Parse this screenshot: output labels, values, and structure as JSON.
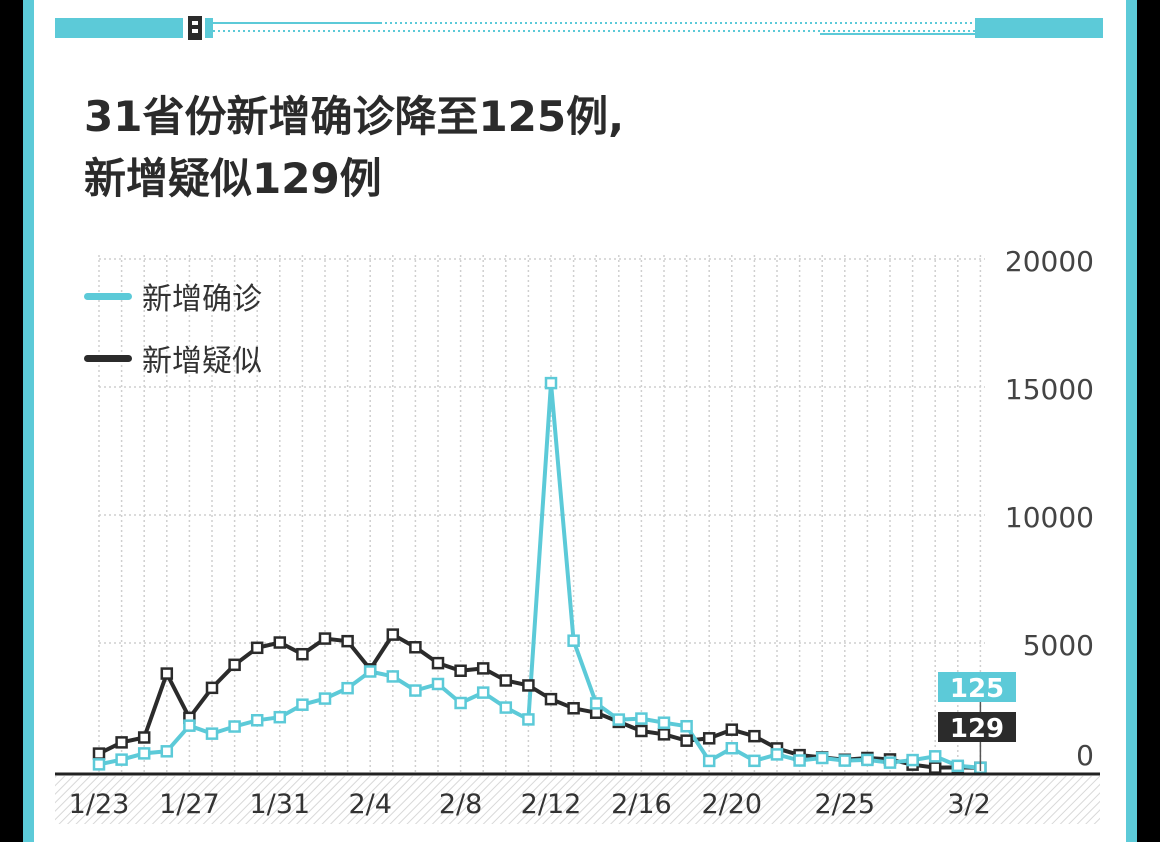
{
  "title_line1": "31省份新增确诊降至125例,",
  "title_line2": "新增疑似129例",
  "colors": {
    "frame": "#5ccad8",
    "confirmed": "#5ccad8",
    "suspected": "#2b2b2b",
    "grid": "#cfcfcf",
    "axis": "#222222"
  },
  "chart_data": {
    "type": "line",
    "title": "31省份新增确诊降至125例, 新增疑似129例",
    "xlabel": "",
    "ylabel": "",
    "ylim": [
      0,
      20000
    ],
    "y_ticks": [
      "20000",
      "15000",
      "10000",
      "5000",
      "0"
    ],
    "y_tick_values": [
      20000,
      15000,
      10000,
      5000,
      0
    ],
    "x": [
      "1/23",
      "1/24",
      "1/25",
      "1/26",
      "1/27",
      "1/28",
      "1/29",
      "1/30",
      "1/31",
      "2/1",
      "2/2",
      "2/3",
      "2/4",
      "2/5",
      "2/6",
      "2/7",
      "2/8",
      "2/9",
      "2/10",
      "2/11",
      "2/12",
      "2/13",
      "2/14",
      "2/15",
      "2/16",
      "2/17",
      "2/18",
      "2/19",
      "2/20",
      "2/21",
      "2/22",
      "2/23",
      "2/24",
      "2/25",
      "2/26",
      "2/27",
      "2/28",
      "2/29",
      "3/1",
      "3/2"
    ],
    "x_tick_labels": [
      "1/23",
      "1/27",
      "1/31",
      "2/4",
      "2/8",
      "2/12",
      "2/16",
      "2/20",
      "2/25",
      "3/2"
    ],
    "x_tick_indices": [
      0,
      4,
      8,
      12,
      16,
      20,
      24,
      28,
      33,
      38.5
    ],
    "grid": true,
    "legend_position": "top-left",
    "series": [
      {
        "name": "新增确诊",
        "color": "#5ccad8",
        "values": [
          259,
          444,
          688,
          769,
          1771,
          1459,
          1737,
          1982,
          2102,
          2590,
          2829,
          3235,
          3887,
          3694,
          3143,
          3399,
          2656,
          3062,
          2478,
          2015,
          15152,
          5090,
          2641,
          2009,
          2048,
          1886,
          1749,
          394,
          889,
          397,
          648,
          409,
          508,
          406,
          433,
          327,
          427,
          573,
          202,
          125
        ]
      },
      {
        "name": "新增疑似",
        "color": "#2b2b2b",
        "values": [
          680,
          1118,
          1309,
          3806,
          2077,
          3248,
          4148,
          4812,
          5019,
          4562,
          5173,
          5072,
          3971,
          5328,
          4833,
          4214,
          3916,
          4008,
          3536,
          3342,
          2807,
          2450,
          2277,
          1918,
          1563,
          1432,
          1185,
          1277,
          1614,
          1361,
          882,
          620,
          530,
          439,
          508,
          452,
          248,
          132,
          141,
          129
        ]
      }
    ],
    "annotations": [
      {
        "label": "125",
        "series": "新增确诊"
      },
      {
        "label": "129",
        "series": "新增疑似"
      }
    ]
  }
}
